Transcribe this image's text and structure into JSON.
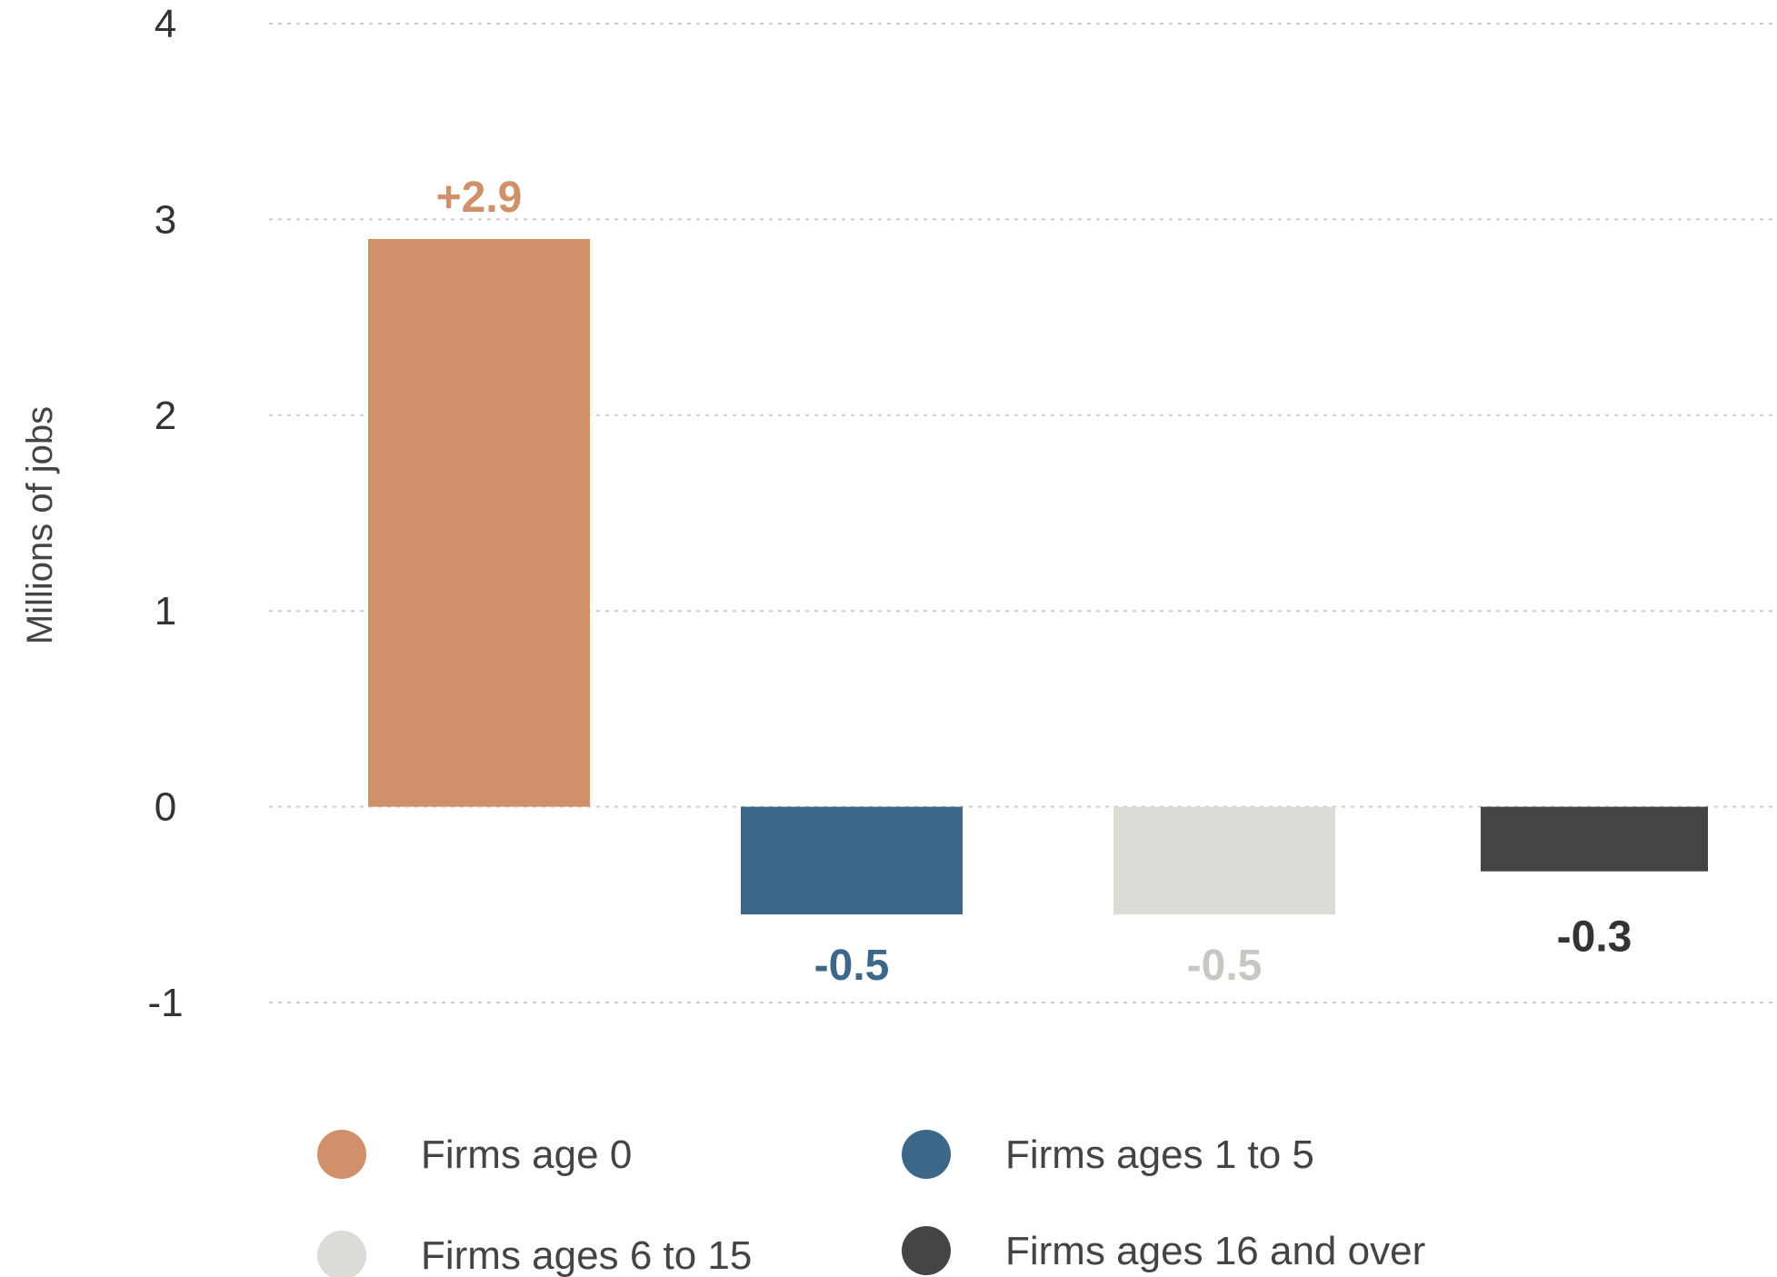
{
  "chart_data": {
    "type": "bar",
    "categories": [
      "Firms age 0",
      "Firms ages 1 to 5",
      "Firms ages 6 to 15",
      "Firms ages 16 and over"
    ],
    "values": [
      2.9,
      -0.55,
      -0.55,
      -0.33
    ],
    "value_labels": [
      "+2.9",
      "-0.5",
      "-0.5",
      "-0.3"
    ],
    "colors": [
      "#d09069",
      "#3d6789",
      "#dcdcd6",
      "#444444"
    ],
    "label_colors": [
      "#d09069",
      "#3d6789",
      "#c8c8c2",
      "#333333"
    ],
    "ylabel": "Millions of jobs",
    "ylim": [
      -1,
      4
    ],
    "yticks": [
      {
        "value": 4,
        "label": "4"
      },
      {
        "value": 3,
        "label": "3"
      },
      {
        "value": 2,
        "label": "2"
      },
      {
        "value": 1,
        "label": "1"
      },
      {
        "value": 0,
        "label": "0"
      },
      {
        "value": -1,
        "label": "-1"
      }
    ],
    "grid": true,
    "legend": {
      "position": "bottom",
      "items": [
        {
          "label": "Firms age 0",
          "color": "#d09069"
        },
        {
          "label": "Firms ages 1 to 5",
          "color": "#3d6789"
        },
        {
          "label": "Firms ages 6 to 15",
          "color": "#dcdcd6"
        },
        {
          "label": "Firms ages 16 and over",
          "color": "#444444"
        }
      ]
    }
  }
}
